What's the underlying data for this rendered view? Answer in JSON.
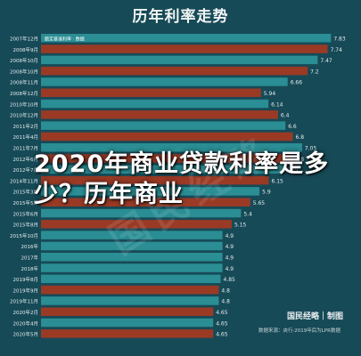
{
  "header": {
    "title": "历年利率走势"
  },
  "overlay": {
    "title": "2020年商业贷款利率是多少？历年商业"
  },
  "watermark": {
    "text": "国民经略"
  },
  "brand": {
    "text": "国民经略｜制图"
  },
  "footnote": {
    "text": "数据来源：央行·2019年后为LPR数据"
  },
  "colors": {
    "background": "#174a57",
    "bar_teal": "#2a8e94",
    "bar_red": "#9a3a25",
    "label": "#e3ecee"
  },
  "chart_data": {
    "type": "bar",
    "orientation": "horizontal",
    "categories": [
      "2007年12月",
      "2008年9月",
      "2008年10月",
      "2008年10月",
      "2008年11月",
      "2008年12月",
      "2010年10月",
      "2010年12月",
      "2011年2月",
      "2011年4月",
      "2011年7月",
      "2012年6月",
      "2012年7月",
      "2014年11月",
      "2015年3月",
      "2015年5月",
      "2015年6月",
      "2015年8月",
      "2015年10月",
      "2016年",
      "2017年",
      "2018年",
      "2019年8月",
      "2019年9月",
      "2019年11月",
      "2020年2月",
      "2020年4月",
      "2020年5月"
    ],
    "values": [
      7.83,
      7.74,
      7.47,
      7.2,
      6.66,
      5.94,
      6.14,
      6.4,
      6.6,
      6.8,
      7.05,
      6.8,
      6.55,
      6.15,
      5.9,
      5.65,
      5.4,
      5.15,
      4.9,
      4.9,
      4.9,
      4.9,
      4.85,
      4.8,
      4.8,
      4.65,
      4.65,
      4.65
    ],
    "value_labels": [
      "7.83",
      "7.74",
      "7.47",
      "7.2",
      "6.66",
      "5.94",
      "6.14",
      "6.4",
      "6.6",
      "6.8",
      "7.05",
      "6.8",
      "6.55",
      "6.15",
      "5.9",
      "5.65",
      "5.4",
      "5.15",
      "4.9",
      "4.9",
      "4.9",
      "4.9",
      "4.85",
      "4.8",
      "4.8",
      "4.65",
      "4.65",
      "4.65"
    ],
    "bar_colors": [
      "teal",
      "red",
      "teal",
      "red",
      "teal",
      "red",
      "teal",
      "red",
      "teal",
      "red",
      "teal",
      "red",
      "teal",
      "red",
      "teal",
      "red",
      "teal",
      "red",
      "teal",
      "teal",
      "teal",
      "teal",
      "teal",
      "red",
      "teal",
      "red",
      "teal",
      "red"
    ],
    "first_bar_label": "额定基准利率 · 数据",
    "xlim": [
      0,
      8.4
    ],
    "grid": false,
    "title": "历年利率走势"
  }
}
